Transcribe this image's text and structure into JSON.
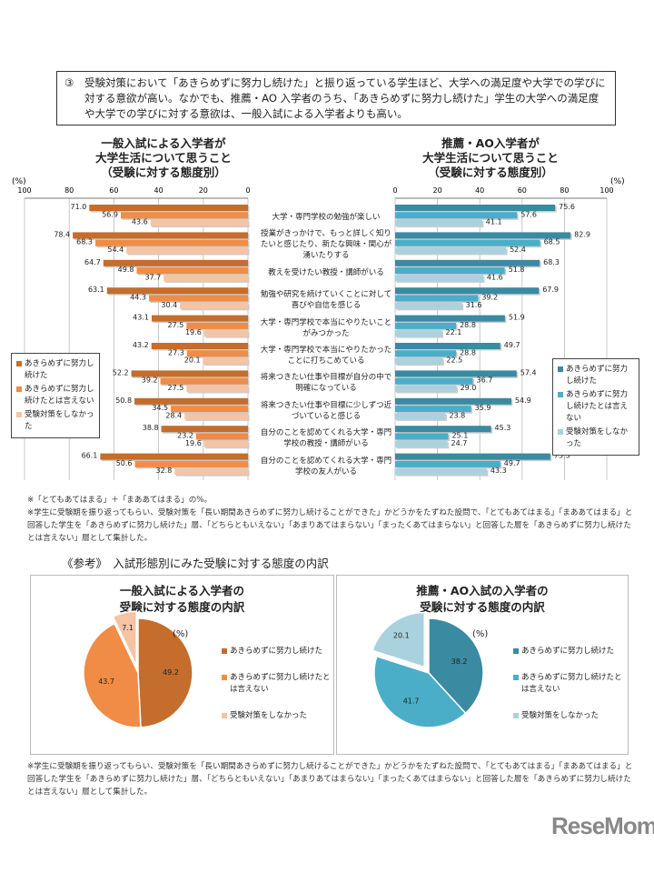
{
  "summary": {
    "number": "③",
    "text": "受験対策において「あきらめずに努力し続けた」と振り返っている学生ほど、大学への満足度や大学での学びに対する意欲が高い。なかでも、推薦・AO 入学者のうち、「あきらめずに努力し続けた」学生の大学への満足度や大学での学びに対する意欲は、一般入試による入学者よりも高い。"
  },
  "chart_data": [
    {
      "type": "bar",
      "orientation": "horizontal",
      "direction": "right-to-left",
      "title": [
        "一般入試による入学者が",
        "大学生活について思うこと",
        "（受験に対する態度別）"
      ],
      "unit": "(%)",
      "xlim": [
        0,
        100
      ],
      "ticks": [
        100,
        80,
        60,
        40,
        20,
        0
      ],
      "grid": true,
      "legend": "bottom-left",
      "colors": [
        "#c46d2c",
        "#f08c45",
        "#f6c3a3"
      ],
      "series": [
        {
          "name": "あきらめずに努力し続けた",
          "values": [
            71.0,
            78.4,
            64.7,
            63.1,
            43.1,
            43.2,
            52.2,
            50.8,
            38.8,
            66.1
          ]
        },
        {
          "name": "あきらめずに努力し続けたとは言えない",
          "values": [
            56.9,
            68.3,
            49.8,
            44.3,
            27.5,
            27.3,
            39.2,
            34.5,
            23.2,
            50.6
          ]
        },
        {
          "name": "受験対策をしなかった",
          "values": [
            43.6,
            54.4,
            37.7,
            30.4,
            19.6,
            20.1,
            27.5,
            28.4,
            19.6,
            32.8
          ]
        }
      ]
    },
    {
      "type": "bar",
      "orientation": "horizontal",
      "direction": "left-to-right",
      "title": [
        "推薦・AO入学者が",
        "大学生活について思うこと",
        "（受験に対する態度別）"
      ],
      "unit": "(%)",
      "xlim": [
        0,
        100
      ],
      "ticks": [
        0,
        20,
        40,
        60,
        80,
        100
      ],
      "grid": true,
      "legend": "bottom-right",
      "colors": [
        "#3a8aa2",
        "#4aaec8",
        "#aad2de"
      ],
      "series": [
        {
          "name": "あきらめずに努力し続けた",
          "values": [
            75.6,
            82.9,
            68.3,
            67.9,
            51.9,
            49.7,
            57.4,
            54.9,
            45.3,
            73.3
          ]
        },
        {
          "name": "あきらめずに努力し続けたとは言えない",
          "values": [
            57.6,
            68.5,
            51.8,
            39.2,
            28.8,
            28.8,
            36.7,
            35.9,
            25.1,
            49.7
          ]
        },
        {
          "name": "受験対策をしなかった",
          "values": [
            41.1,
            52.4,
            41.6,
            31.6,
            22.1,
            22.5,
            29.0,
            23.8,
            24.7,
            43.3
          ]
        }
      ]
    },
    {
      "type": "pie",
      "title": [
        "一般入試による入学者の",
        "受験に対する態度の内訳"
      ],
      "unit": "(%)",
      "colors": [
        "#c46d2c",
        "#f08c45",
        "#f6c3a3"
      ],
      "labels": [
        "あきらめずに努力し続けた",
        "あきらめずに努力し続けたとは言えない",
        "受験対策をしなかった"
      ],
      "values": [
        49.2,
        43.7,
        7.1
      ],
      "exploded": [
        2
      ]
    },
    {
      "type": "pie",
      "title": [
        "推薦・AO入試の入学者の",
        "受験に対する態度の内訳"
      ],
      "unit": "(%)",
      "colors": [
        "#3a8aa2",
        "#4aaec8",
        "#aad2de"
      ],
      "labels": [
        "あきらめずに努力し続けた",
        "あきらめずに努力し続けたとは言えない",
        "受験対策をしなかった"
      ],
      "values": [
        38.2,
        41.7,
        20.1
      ],
      "exploded": [
        2
      ]
    }
  ],
  "categories": [
    "大学・専門学校の勉強が楽しい",
    "授業がきっかけで、もっと詳しく知りたいと感じたり、新たな興味・関心が湧いたりする",
    "教えを受けたい教授・講師がいる",
    "勉強や研究を続けていくことに対して喜びや自信を感じる",
    "大学・専門学校で本当にやりたいことがみつかった",
    "大学・専門学校で本当にやりたかったことに打ちこめている",
    "将来つきたい仕事や目標が自分の中で明確になっている",
    "将来つきたい仕事や目標に少しずつ近づいていると感じる",
    "自分のことを認めてくれる大学・専門学校の教授・講師がいる",
    "自分のことを認めてくれる大学・専門学校の友人がいる"
  ],
  "notes": [
    "※「とてもあてはまる」＋「まああてはまる」の%。",
    "※学生に受験期を振り返ってもらい、受験対策を「長い期間あきらめずに努力し続けることができた」かどうかをたずねた設問で、「とてもあてはまる」「まああてはまる」と回答した学生を「あきらめずに努力し続けた」層、「どちらともいえない」「あまりあてはまらない」「まったくあてはまらない」と回答した層を「あきらめずに努力し続けたとは言えない」層として集計した。"
  ],
  "reference_heading": "《参考》　入試形態別にみた受験に対する態度の内訳",
  "bottom_note": "※学生に受験期を振り返ってもらい、受験対策を「長い期間あきらめずに努力し続けることができた」かどうかをたずねた設問で、「とてもあてはまる」「まああてはまる」と回答した学生を「あきらめずに努力し続けた」層、「どちらともいえない」「あまりあてはまらない」「まったくあてはまらない」と回答した層を「あきらめずに努力し続けたとは言えない」層として集計した。",
  "logo": "ReseMom"
}
